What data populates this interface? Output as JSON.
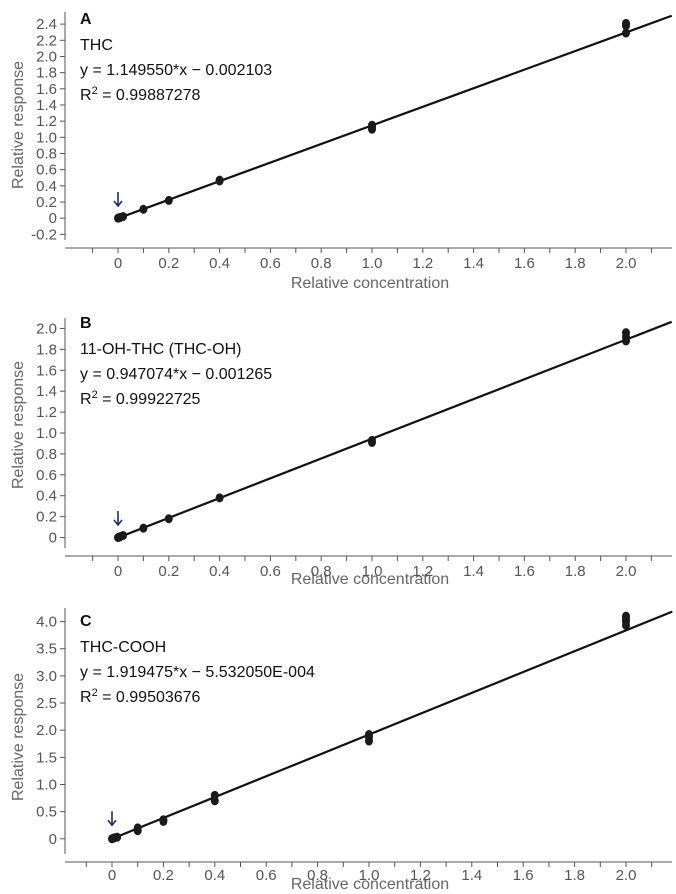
{
  "colors": {
    "arrow": "#1f2a7a",
    "points": "#1a1a1a",
    "line": "#111111",
    "ticks": "#555555"
  },
  "chart_data": [
    {
      "type": "scatter",
      "panel": "A",
      "analyte": "THC",
      "equation": "y = 1.149550*x − 0.002103",
      "r2_label": "R",
      "r2_sup": "2",
      "r2_value": " = 0.99887278",
      "xlabel": "Relative concentration",
      "ylabel": "Relative response",
      "xlim": [
        -0.2,
        2.18
      ],
      "ylim": [
        -0.27,
        2.55
      ],
      "xticks": [
        0,
        0.2,
        0.4,
        0.6,
        0.8,
        1.0,
        1.2,
        1.4,
        1.6,
        1.8,
        2.0
      ],
      "xtick_labels": [
        "0",
        "0.2",
        "0.4",
        "0.6",
        "0.8",
        "1.0",
        "1.2",
        "1.4",
        "1.6",
        "1.8",
        "2.0"
      ],
      "yticks": [
        -0.2,
        0,
        0.2,
        0.4,
        0.6,
        0.8,
        1.0,
        1.2,
        1.4,
        1.6,
        1.8,
        2.0,
        2.2,
        2.4
      ],
      "ytick_labels": [
        "-0.2",
        "0",
        "0.2",
        "0.4",
        "0.6",
        "0.8",
        "1.0",
        "1.2",
        "1.4",
        "1.6",
        "1.8",
        "2.0",
        "2.2",
        "2.4"
      ],
      "fit": {
        "slope": 1.14955,
        "intercept": -0.002103
      },
      "points": {
        "x": [
          0,
          0.005,
          0.01,
          0.02,
          0.1,
          0.2,
          0.4,
          0.4,
          1.0,
          1.0,
          1.0,
          2.0,
          2.0,
          2.0
        ],
        "y": [
          0.0,
          0.005,
          0.01,
          0.02,
          0.11,
          0.22,
          0.46,
          0.47,
          1.1,
          1.13,
          1.15,
          2.29,
          2.38,
          2.41
        ]
      },
      "arrow_at": [
        0,
        0.15
      ]
    },
    {
      "type": "scatter",
      "panel": "B",
      "analyte": "11-OH-THC (THC-OH)",
      "equation": "y = 0.947074*x − 0.001265",
      "r2_label": "R",
      "r2_sup": "2",
      "r2_value": " = 0.99922725",
      "xlabel": "Relative concentration",
      "ylabel": "Relative response",
      "xlim": [
        -0.2,
        2.18
      ],
      "ylim": [
        -0.1,
        2.1
      ],
      "xticks": [
        0,
        0.2,
        0.4,
        0.6,
        0.8,
        1.0,
        1.2,
        1.4,
        1.6,
        1.8,
        2.0
      ],
      "xtick_labels": [
        "0",
        "0.2",
        "0.4",
        "0.6",
        "0.8",
        "1.0",
        "1.2",
        "1.4",
        "1.6",
        "1.8",
        "2.0"
      ],
      "yticks": [
        0,
        0.2,
        0.4,
        0.6,
        0.8,
        1.0,
        1.2,
        1.4,
        1.6,
        1.8,
        2.0
      ],
      "ytick_labels": [
        "0",
        "0.2",
        "0.4",
        "0.6",
        "0.8",
        "1.0",
        "1.2",
        "1.4",
        "1.6",
        "1.8",
        "2.0"
      ],
      "fit": {
        "slope": 0.947074,
        "intercept": -0.001265
      },
      "points": {
        "x": [
          0,
          0.005,
          0.01,
          0.02,
          0.1,
          0.2,
          0.4,
          1.0,
          1.0,
          2.0,
          2.0,
          2.0
        ],
        "y": [
          0.0,
          0.005,
          0.01,
          0.02,
          0.09,
          0.18,
          0.38,
          0.91,
          0.93,
          1.88,
          1.92,
          1.96
        ]
      },
      "arrow_at": [
        0,
        0.12
      ]
    },
    {
      "type": "scatter",
      "panel": "C",
      "analyte": "THC-COOH",
      "equation": "y = 1.919475*x − 5.532050E-004",
      "r2_label": "R",
      "r2_sup": "2",
      "r2_value": " = 0.99503676",
      "xlabel": "Relative concentration",
      "ylabel": "Relative response",
      "xlim": [
        -0.2,
        2.18
      ],
      "ylim": [
        -0.28,
        4.25
      ],
      "xticks": [
        0,
        0.2,
        0.4,
        0.6,
        0.8,
        1.0,
        1.2,
        1.4,
        1.6,
        1.8,
        2.0
      ],
      "xtick_labels": [
        "0",
        "0.2",
        "0.4",
        "0.6",
        "0.8",
        "1.0",
        "1.2",
        "1.4",
        "1.6",
        "1.8",
        "2.0"
      ],
      "yticks": [
        0,
        0.5,
        1.0,
        1.5,
        2.0,
        2.5,
        3.0,
        3.5,
        4.0
      ],
      "ytick_labels": [
        "0",
        "0.5",
        "1.0",
        "1.5",
        "2.0",
        "2.5",
        "3.0",
        "3.5",
        "4.0"
      ],
      "fit": {
        "slope": 1.919475,
        "intercept": -0.000553205
      },
      "points": {
        "x": [
          0,
          0.005,
          0.01,
          0.02,
          0.1,
          0.1,
          0.2,
          0.2,
          0.4,
          0.4,
          1.0,
          1.0,
          1.0,
          2.0,
          2.0,
          2.0,
          2.0
        ],
        "y": [
          0.0,
          0.01,
          0.02,
          0.03,
          0.15,
          0.2,
          0.32,
          0.35,
          0.7,
          0.8,
          1.8,
          1.87,
          1.92,
          3.93,
          4.0,
          4.05,
          4.1
        ]
      },
      "arrow_at": [
        0,
        0.25
      ]
    }
  ]
}
